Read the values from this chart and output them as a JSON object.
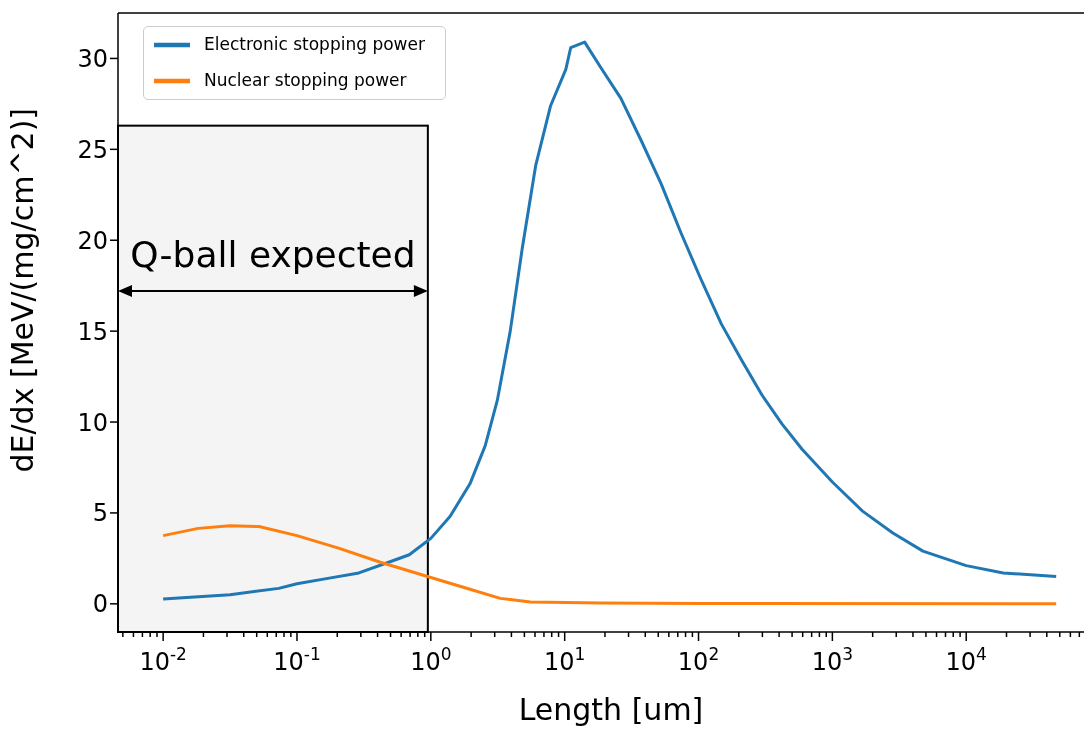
{
  "chart_data": {
    "type": "line",
    "xlabel": "Length [um]",
    "ylabel": "dE/dx [MeV/(mg/cm^2)]",
    "log": "x",
    "xlim": [
      0.0046,
      107000
    ],
    "ylim": [
      -1.55,
      32.5
    ],
    "xticks": [
      {
        "value": 0.01,
        "label": "10$^{-2}$"
      },
      {
        "value": 0.1,
        "label": "10$^{-1}$"
      },
      {
        "value": 1,
        "label": "10$^{0}$"
      },
      {
        "value": 10,
        "label": "10$^{1}$"
      },
      {
        "value": 100,
        "label": "10$^{2}$"
      },
      {
        "value": 1000,
        "label": "10$^{3}$"
      },
      {
        "value": 10000,
        "label": "10$^{4}$"
      },
      {
        "value": 0.005,
        "label": null
      },
      {
        "value": 0.006,
        "label": null
      },
      {
        "value": 0.007,
        "label": null
      },
      {
        "value": 0.008,
        "label": null
      },
      {
        "value": 0.009,
        "label": null
      },
      {
        "value": 0.02,
        "label": null
      },
      {
        "value": 0.03,
        "label": null
      },
      {
        "value": 0.04,
        "label": null
      },
      {
        "value": 0.05,
        "label": null
      },
      {
        "value": 0.06,
        "label": null
      },
      {
        "value": 0.07,
        "label": null
      },
      {
        "value": 0.08,
        "label": null
      },
      {
        "value": 0.09,
        "label": null
      },
      {
        "value": 0.2,
        "label": null
      },
      {
        "value": 0.3,
        "label": null
      },
      {
        "value": 0.4,
        "label": null
      },
      {
        "value": 0.5,
        "label": null
      },
      {
        "value": 0.6,
        "label": null
      },
      {
        "value": 0.7,
        "label": null
      },
      {
        "value": 0.8,
        "label": null
      },
      {
        "value": 0.9,
        "label": null
      },
      {
        "value": 2,
        "label": null
      },
      {
        "value": 3,
        "label": null
      },
      {
        "value": 4,
        "label": null
      },
      {
        "value": 5,
        "label": null
      },
      {
        "value": 6,
        "label": null
      },
      {
        "value": 7,
        "label": null
      },
      {
        "value": 8,
        "label": null
      },
      {
        "value": 9,
        "label": null
      },
      {
        "value": 20,
        "label": null
      },
      {
        "value": 30,
        "label": null
      },
      {
        "value": 40,
        "label": null
      },
      {
        "value": 50,
        "label": null
      },
      {
        "value": 60,
        "label": null
      },
      {
        "value": 70,
        "label": null
      },
      {
        "value": 80,
        "label": null
      },
      {
        "value": 90,
        "label": null
      },
      {
        "value": 200,
        "label": null
      },
      {
        "value": 300,
        "label": null
      },
      {
        "value": 400,
        "label": null
      },
      {
        "value": 500,
        "label": null
      },
      {
        "value": 600,
        "label": null
      },
      {
        "value": 700,
        "label": null
      },
      {
        "value": 800,
        "label": null
      },
      {
        "value": 900,
        "label": null
      },
      {
        "value": 2000,
        "label": null
      },
      {
        "value": 3000,
        "label": null
      },
      {
        "value": 4000,
        "label": null
      },
      {
        "value": 5000,
        "label": null
      },
      {
        "value": 6000,
        "label": null
      },
      {
        "value": 7000,
        "label": null
      },
      {
        "value": 8000,
        "label": null
      },
      {
        "value": 9000,
        "label": null
      },
      {
        "value": 20000,
        "label": null
      },
      {
        "value": 30000,
        "label": null
      },
      {
        "value": 40000,
        "label": null
      },
      {
        "value": 50000,
        "label": null
      },
      {
        "value": 60000,
        "label": null
      },
      {
        "value": 70000,
        "label": null
      },
      {
        "value": 80000,
        "label": null
      },
      {
        "value": 90000,
        "label": null
      }
    ],
    "yticks": [
      0,
      5,
      10,
      15,
      20,
      25,
      30
    ],
    "grid": false,
    "legend": "top left",
    "bands": [
      {
        "axis": "x",
        "from": 0.0046,
        "to": 0.95,
        "label": "Q-ball expected",
        "color": "#f4f4f4"
      }
    ],
    "series": [
      {
        "name": "Electronic stopping power",
        "color": "#1f77b4",
        "x": [
          0.01,
          0.0316,
          0.073,
          0.1,
          0.17,
          0.29,
          0.49,
          0.69,
          1,
          1.39,
          1.96,
          2.55,
          3.14,
          3.92,
          4.83,
          6.07,
          7.85,
          10.2,
          11.1,
          14.1,
          18.6,
          26.3,
          37.2,
          52.6,
          74,
          105,
          148,
          210,
          297,
          420,
          594,
          1000,
          1680,
          2830,
          4750,
          10000,
          18900,
          47000
        ],
        "values": [
          0.27,
          0.5,
          0.85,
          1.1,
          1.4,
          1.7,
          2.3,
          2.7,
          3.6,
          4.8,
          6.6,
          8.7,
          11.2,
          15,
          19.6,
          24.1,
          27.4,
          29.4,
          30.6,
          30.9,
          29.5,
          27.8,
          25.5,
          23.1,
          20.4,
          17.8,
          15.4,
          13.4,
          11.5,
          9.9,
          8.5,
          6.7,
          5.1,
          3.9,
          2.9,
          2.1,
          1.7,
          1.5
        ]
      },
      {
        "name": "Nuclear stopping power",
        "color": "#ff7f0e",
        "x": [
          0.01,
          0.0183,
          0.0316,
          0.052,
          0.1,
          0.207,
          0.414,
          1,
          1.96,
          3.3,
          5.55,
          18.6,
          105,
          47000
        ],
        "values": [
          3.75,
          4.15,
          4.3,
          4.25,
          3.75,
          3.05,
          2.3,
          1.45,
          0.8,
          0.3,
          0.1,
          0.05,
          0.02,
          0
        ]
      }
    ]
  }
}
